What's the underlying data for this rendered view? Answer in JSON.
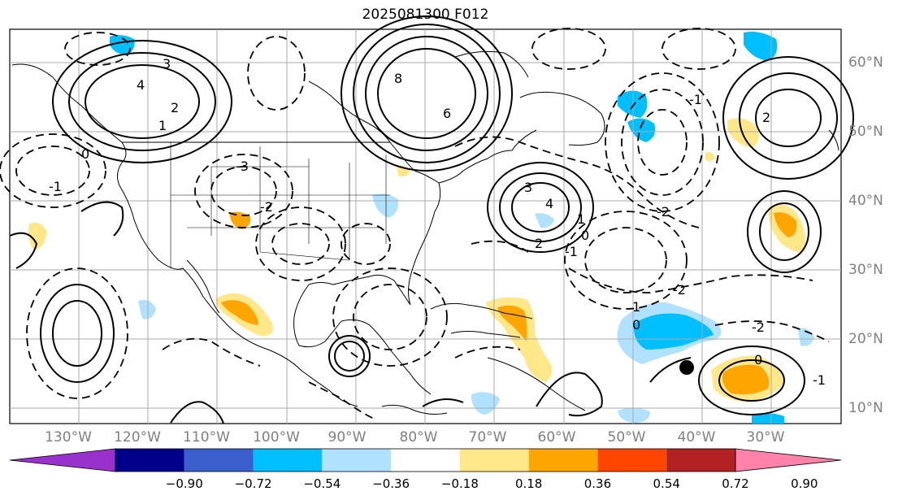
{
  "title": "2025081300 F012",
  "lon_labels": [
    "130°W",
    "120°W",
    "110°W",
    "100°W",
    "90°W",
    "80°W",
    "70°W",
    "60°W",
    "50°W",
    "40°W",
    "30°W"
  ],
  "lat_labels": [
    "60°N",
    "50°N",
    "40°N",
    "30°N",
    "20°N",
    "10°N"
  ],
  "colorbar": {
    "ticks": [
      "−0.90",
      "−0.72",
      "−0.54",
      "−0.36",
      "−0.18",
      "0.18",
      "0.36",
      "0.54",
      "0.72",
      "0.90"
    ],
    "colors": [
      "#9932cc",
      "#00008b",
      "#3a5fcd",
      "#00bfff",
      "#b0e2ff",
      "#ffffff",
      "#ffe78a",
      "#ffa500",
      "#ff4500",
      "#b22222",
      "#ff82ab"
    ]
  },
  "contour_labels": [
    "4",
    "3",
    "2",
    "1",
    "0",
    "-1",
    "-2",
    "-3",
    "8",
    "6",
    "3",
    "4",
    "2",
    "1",
    "0",
    "-1",
    "-2",
    "-2",
    "1",
    "0",
    "-1",
    "-2",
    "2",
    "0",
    "-1"
  ],
  "marker": "black-dot"
}
